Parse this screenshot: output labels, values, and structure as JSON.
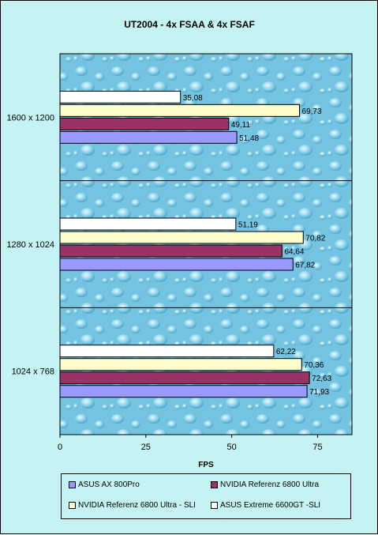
{
  "chart_data": {
    "type": "bar",
    "orientation": "horizontal",
    "title": "UT2004  - 4x FSAA & 4x FSAF",
    "xlabel": "FPS",
    "ylabel": "",
    "xlim": [
      0,
      85
    ],
    "xticks": [
      0,
      25,
      50,
      75
    ],
    "categories": [
      "1600 x 1200",
      "1280 x 1024",
      "1024 x 768"
    ],
    "series": [
      {
        "name": "ASUS AX 800Pro",
        "color": "#9999ff",
        "values": [
          51.48,
          67.82,
          71.93
        ],
        "labels": [
          "51,48",
          "67,82",
          "71,93"
        ]
      },
      {
        "name": "NVIDIA  Referenz 6800 Ultra",
        "color": "#993366",
        "values": [
          49.11,
          64.64,
          72.63
        ],
        "labels": [
          "49,11",
          "64,64",
          "72,63"
        ]
      },
      {
        "name": "NVIDIA  Referenz 6800 Ultra - SLI",
        "color": "#ffffcc",
        "values": [
          69.73,
          70.82,
          70.36
        ],
        "labels": [
          "69,73",
          "70,82",
          "70,36"
        ]
      },
      {
        "name": "ASUS Extreme 6600GT -SLI",
        "color": "#ffffff",
        "values": [
          35.08,
          51.19,
          62.22
        ],
        "labels": [
          "35,08",
          "51,19",
          "62,22"
        ]
      }
    ],
    "grid": false,
    "legend_position": "bottom"
  }
}
